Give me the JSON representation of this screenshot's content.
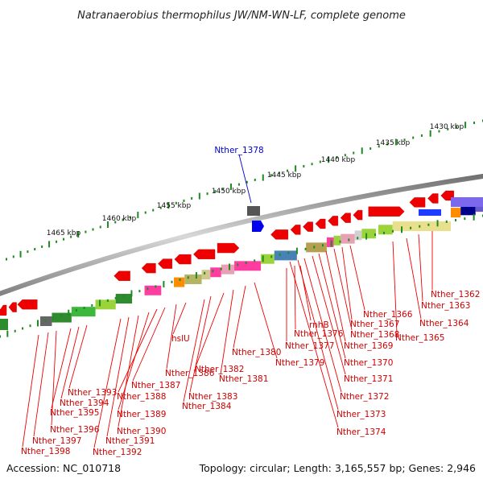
{
  "title": "Natranaerobius thermophilus JW/NM-WN-LF, complete genome",
  "footer": {
    "accession": "Accession: NC_010718",
    "summary": "Topology: circular; Length: 3,165,557 bp; Genes: 2,946"
  },
  "kbp_labels": [
    "1430 kbp",
    "1435 kbp",
    "1440 kbp",
    "1445 kbp",
    "1450 kbp",
    "1455 kbp",
    "1460 kbp",
    "1465 kbp"
  ],
  "highlight_gene": "Nther_1378",
  "gene_labels": [
    "Nther_1362",
    "Nther_1363",
    "Nther_1364",
    "Nther_1365",
    "Nther_1366",
    "Nther_1367",
    "Nther_1368",
    "Nther_1369",
    "Nther_1370",
    "Nther_1371",
    "Nther_1372",
    "Nther_1373",
    "Nther_1374",
    "rnhB",
    "Nther_1376",
    "Nther_1377",
    "Nther_1379",
    "Nther_1380",
    "Nther_1381",
    "Nther_1382",
    "Nther_1383",
    "Nther_1384",
    "hslU",
    "Nther_1386",
    "Nther_1387",
    "Nther_1388",
    "Nther_1389",
    "Nther_1390",
    "Nther_1391",
    "Nther_1392",
    "Nther_1393",
    "Nther_1394",
    "Nther_1395",
    "Nther_1396",
    "Nther_1397",
    "Nther_1398"
  ],
  "colors": {
    "backbone": "#8a8a8a",
    "tick": "#1f8a1f",
    "gene_arrow": "#ee0000",
    "label": "#d00000",
    "highlight": "#0000cc"
  }
}
